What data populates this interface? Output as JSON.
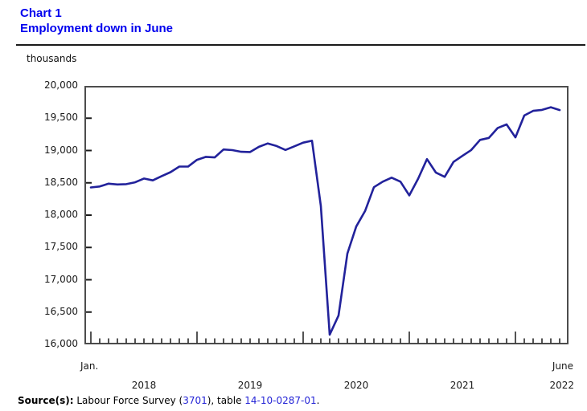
{
  "header": {
    "chart_label": "Chart 1",
    "title": "Employment down in June"
  },
  "y_axis": {
    "unit_label": "thousands",
    "tick_labels": [
      "20,000",
      "19,500",
      "19,000",
      "18,500",
      "18,000",
      "17,500",
      "17,000",
      "16,500",
      "16,000"
    ]
  },
  "x_axis": {
    "start_month_label": "Jan.",
    "end_month_label": "June",
    "year_labels": [
      "2018",
      "2019",
      "2020",
      "2021",
      "2022"
    ]
  },
  "source": {
    "prefix": "Source(s):",
    "text_1": " Labour Force Survey (",
    "link_1": "3701",
    "text_2": "), table ",
    "link_2": "14-10-0287-01",
    "text_3": "."
  },
  "colors": {
    "title_blue": "#0000ee",
    "line_navy": "#22229b",
    "link_blue": "#2424d6",
    "frame_gray": "#4d4d4d",
    "tick_black": "#1a1a1a"
  },
  "chart_data": {
    "type": "line",
    "title": "Employment down in June",
    "ylabel": "thousands",
    "xlabel": "",
    "ylim": [
      16000,
      20000
    ],
    "y_tick_step": 500,
    "grid": false,
    "legend": false,
    "x_range_labels": [
      "Jan. 2018",
      "June 2022"
    ],
    "major_x_ticks": "January of each year",
    "months": [
      "2018-01",
      "2018-02",
      "2018-03",
      "2018-04",
      "2018-05",
      "2018-06",
      "2018-07",
      "2018-08",
      "2018-09",
      "2018-10",
      "2018-11",
      "2018-12",
      "2019-01",
      "2019-02",
      "2019-03",
      "2019-04",
      "2019-05",
      "2019-06",
      "2019-07",
      "2019-08",
      "2019-09",
      "2019-10",
      "2019-11",
      "2019-12",
      "2020-01",
      "2020-02",
      "2020-03",
      "2020-04",
      "2020-05",
      "2020-06",
      "2020-07",
      "2020-08",
      "2020-09",
      "2020-10",
      "2020-11",
      "2020-12",
      "2021-01",
      "2021-02",
      "2021-03",
      "2021-04",
      "2021-05",
      "2021-06",
      "2021-07",
      "2021-08",
      "2021-09",
      "2021-10",
      "2021-11",
      "2021-12",
      "2022-01",
      "2022-02",
      "2022-03",
      "2022-04",
      "2022-05",
      "2022-06"
    ],
    "series": [
      {
        "name": "Employment (thousands)",
        "values": [
          18429,
          18444,
          18487,
          18475,
          18479,
          18508,
          18566,
          18538,
          18604,
          18665,
          18752,
          18753,
          18856,
          18902,
          18893,
          19016,
          19006,
          18980,
          18976,
          19057,
          19109,
          19070,
          19009,
          19064,
          19122,
          19152,
          18141,
          16150,
          16446,
          17405,
          17824,
          18063,
          18432,
          18518,
          18580,
          18518,
          18305,
          18564,
          18867,
          18660,
          18592,
          18823,
          18917,
          19007,
          19164,
          19195,
          19349,
          19404,
          19204,
          19541,
          19614,
          19629,
          19669,
          19626
        ]
      }
    ]
  }
}
